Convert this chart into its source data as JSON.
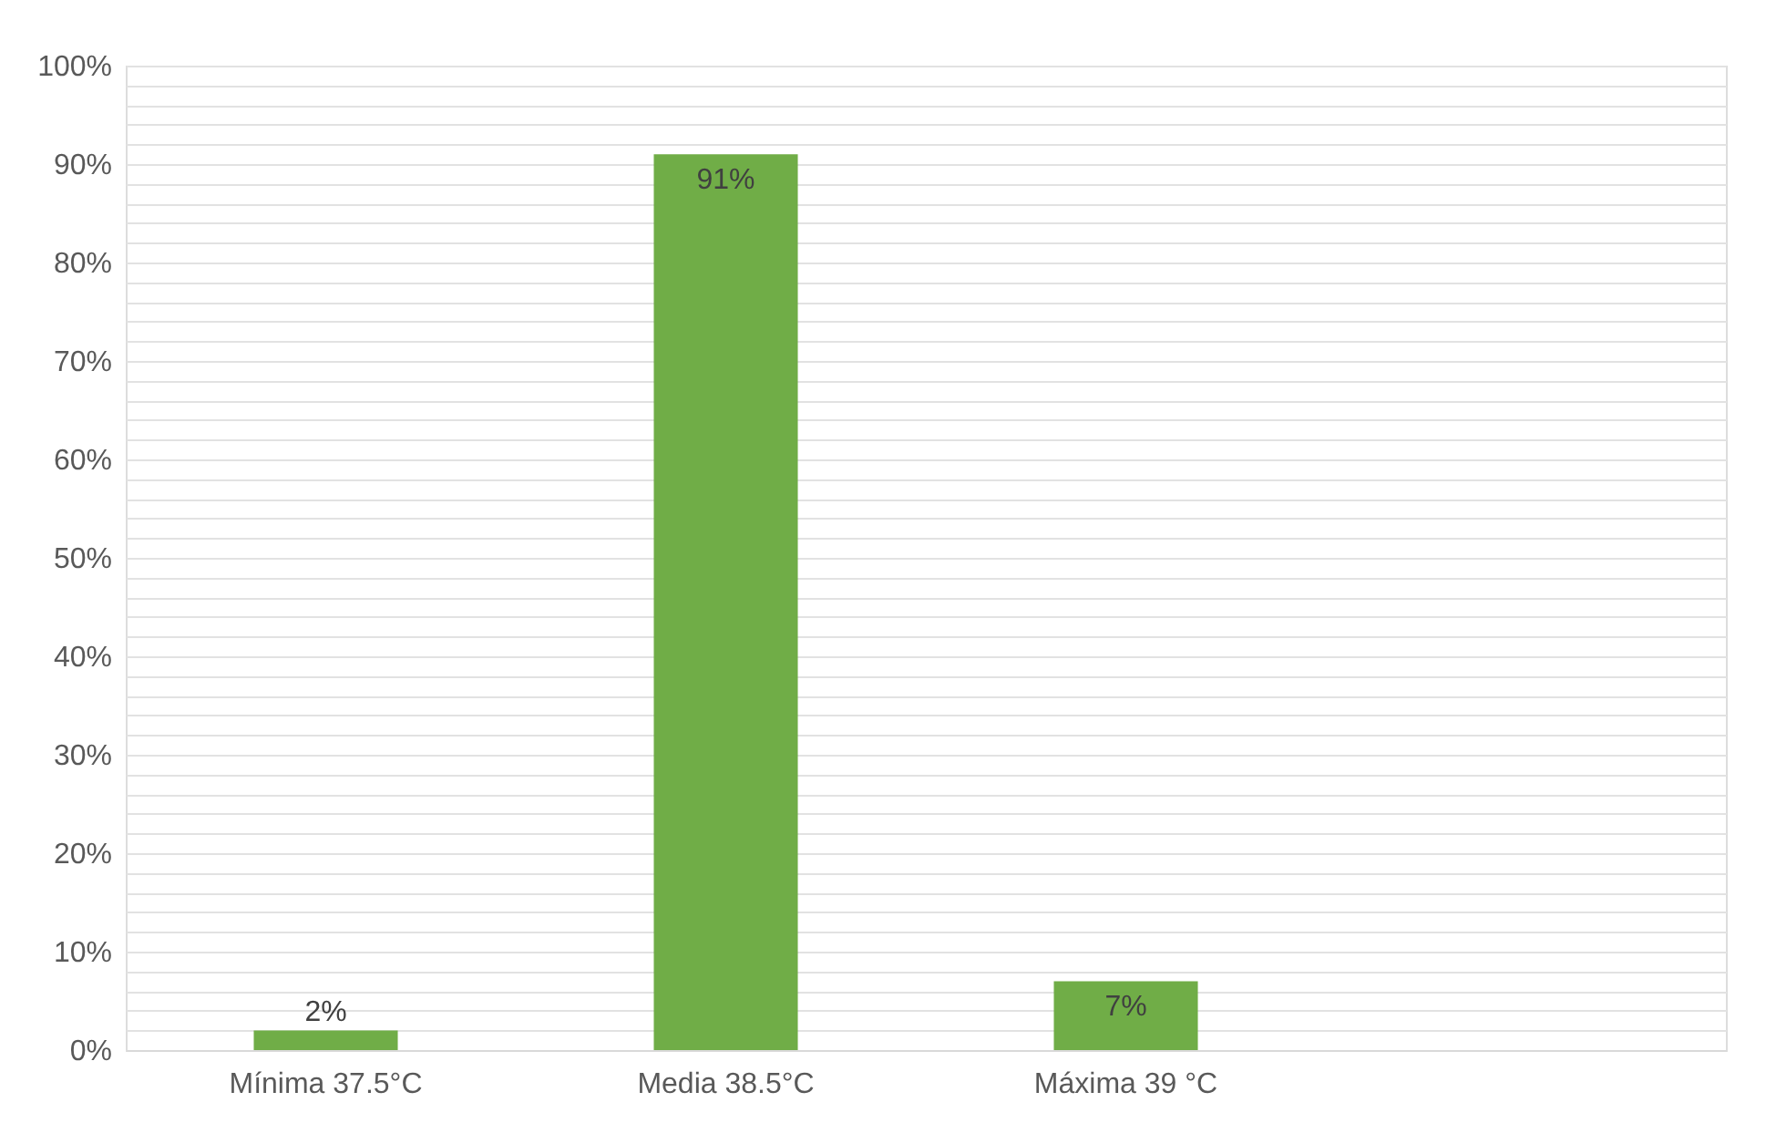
{
  "chart_data": {
    "type": "bar",
    "categories": [
      "Mínima 37.5°C",
      "Media 38.5°C",
      "Máxima 39 °C",
      null
    ],
    "values": [
      2,
      91,
      7,
      null
    ],
    "color": "#70ad47",
    "data_labels": true,
    "value_labels": [
      "2%",
      "91%",
      "7%",
      null
    ],
    "ylim": [
      0,
      100
    ],
    "yticks": [
      {
        "value": 0,
        "label": "0%"
      },
      {
        "value": 2,
        "label": null
      },
      {
        "value": 4,
        "label": null
      },
      {
        "value": 6,
        "label": null
      },
      {
        "value": 8,
        "label": null
      },
      {
        "value": 10,
        "label": "10%"
      },
      {
        "value": 12,
        "label": null
      },
      {
        "value": 14,
        "label": null
      },
      {
        "value": 16,
        "label": null
      },
      {
        "value": 18,
        "label": null
      },
      {
        "value": 20,
        "label": "20%"
      },
      {
        "value": 22,
        "label": null
      },
      {
        "value": 24,
        "label": null
      },
      {
        "value": 26,
        "label": null
      },
      {
        "value": 28,
        "label": null
      },
      {
        "value": 30,
        "label": "30%"
      },
      {
        "value": 32,
        "label": null
      },
      {
        "value": 34,
        "label": null
      },
      {
        "value": 36,
        "label": null
      },
      {
        "value": 38,
        "label": null
      },
      {
        "value": 40,
        "label": "40%"
      },
      {
        "value": 42,
        "label": null
      },
      {
        "value": 44,
        "label": null
      },
      {
        "value": 46,
        "label": null
      },
      {
        "value": 48,
        "label": null
      },
      {
        "value": 50,
        "label": "50%"
      },
      {
        "value": 52,
        "label": null
      },
      {
        "value": 54,
        "label": null
      },
      {
        "value": 56,
        "label": null
      },
      {
        "value": 58,
        "label": null
      },
      {
        "value": 60,
        "label": "60%"
      },
      {
        "value": 62,
        "label": null
      },
      {
        "value": 64,
        "label": null
      },
      {
        "value": 66,
        "label": null
      },
      {
        "value": 68,
        "label": null
      },
      {
        "value": 70,
        "label": "70%"
      },
      {
        "value": 72,
        "label": null
      },
      {
        "value": 74,
        "label": null
      },
      {
        "value": 76,
        "label": null
      },
      {
        "value": 78,
        "label": null
      },
      {
        "value": 80,
        "label": "80%"
      },
      {
        "value": 82,
        "label": null
      },
      {
        "value": 84,
        "label": null
      },
      {
        "value": 86,
        "label": null
      },
      {
        "value": 88,
        "label": null
      },
      {
        "value": 90,
        "label": "90%"
      },
      {
        "value": 92,
        "label": null
      },
      {
        "value": 94,
        "label": null
      },
      {
        "value": 96,
        "label": null
      },
      {
        "value": 98,
        "label": null
      },
      {
        "value": 100,
        "label": "100%"
      }
    ],
    "grid": "y"
  }
}
